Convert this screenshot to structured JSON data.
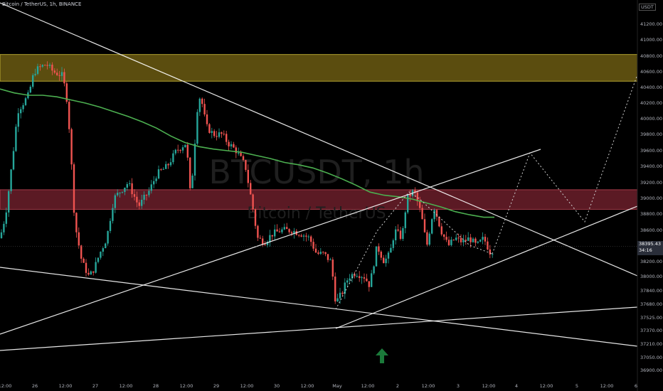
{
  "header": {
    "symbol_line": "Bitcoin / TetherUS, 1h, BINANCE",
    "currency": "USDT"
  },
  "watermark": {
    "ticker": "BTCUSDT, 1h",
    "name": "Bitcoin / TetherUS"
  },
  "current_price": {
    "value": "38395.43",
    "countdown": "34:16"
  },
  "colors": {
    "up": "#26a69a",
    "down": "#ef5350",
    "ma": "#4caf50",
    "supply_zone": "#6b5a12",
    "resistance_zone": "#6b1f2a",
    "trendline": "#ffffff",
    "arrow": "#1b7a3a"
  },
  "chart_data": {
    "type": "candlestick",
    "y_axis": {
      "ticks": [
        36900,
        37050,
        37210,
        37370,
        37525,
        37680,
        37840,
        38000,
        38200,
        38400,
        38600,
        38800,
        39000,
        39200,
        39400,
        39600,
        39800,
        40000,
        40200,
        40400,
        40600,
        40800,
        41000,
        41200
      ],
      "tick_labels": [
        "36900.00",
        "37050.00",
        "37210.00",
        "37370.00",
        "37525.00",
        "37680.00",
        "37840.00",
        "38000.00",
        "38200.00",
        "38400.00",
        "38600.00",
        "38800.00",
        "39000.00",
        "39200.00",
        "39400.00",
        "39600.00",
        "39800.00",
        "40000.00",
        "40200.00",
        "40400.00",
        "40600.00",
        "40800.00",
        "41000.00",
        "41200.00"
      ],
      "range": [
        36850,
        41250
      ]
    },
    "x_axis": {
      "labels": [
        "12:00",
        "26",
        "12:00",
        "27",
        "12:00",
        "28",
        "12:00",
        "29",
        "12:00",
        "30",
        "12:00",
        "May",
        "12:00",
        "2",
        "12:00",
        "3",
        "12:00",
        "4",
        "12:00",
        "5",
        "12:00",
        "6"
      ]
    },
    "zones": [
      {
        "name": "supply",
        "low": 40480,
        "high": 40820
      },
      {
        "name": "resistance",
        "low": 38860,
        "high": 39110
      }
    ],
    "ma_series": [
      [
        0,
        40380
      ],
      [
        20,
        40330
      ],
      [
        40,
        40300
      ],
      [
        60,
        40300
      ],
      [
        80,
        40280
      ],
      [
        100,
        40240
      ],
      [
        120,
        40200
      ],
      [
        140,
        40150
      ],
      [
        160,
        40090
      ],
      [
        180,
        40030
      ],
      [
        200,
        39960
      ],
      [
        220,
        39880
      ],
      [
        240,
        39780
      ],
      [
        260,
        39700
      ],
      [
        280,
        39650
      ],
      [
        300,
        39620
      ],
      [
        320,
        39600
      ],
      [
        340,
        39580
      ],
      [
        360,
        39540
      ],
      [
        380,
        39500
      ],
      [
        400,
        39450
      ],
      [
        420,
        39420
      ],
      [
        440,
        39380
      ],
      [
        460,
        39320
      ],
      [
        480,
        39250
      ],
      [
        500,
        39170
      ],
      [
        520,
        39080
      ],
      [
        540,
        39040
      ],
      [
        560,
        39020
      ],
      [
        580,
        38990
      ],
      [
        600,
        38940
      ],
      [
        620,
        38890
      ],
      [
        640,
        38830
      ],
      [
        660,
        38790
      ],
      [
        680,
        38760
      ],
      [
        695,
        38760
      ]
    ],
    "candle_keyframes": [
      [
        0,
        38500
      ],
      [
        8,
        38800
      ],
      [
        15,
        39300
      ],
      [
        25,
        40100
      ],
      [
        40,
        40300
      ],
      [
        48,
        40600
      ],
      [
        55,
        40650
      ],
      [
        65,
        40700
      ],
      [
        75,
        40600
      ],
      [
        88,
        40550
      ],
      [
        95,
        40200
      ],
      [
        100,
        39500
      ],
      [
        105,
        38700
      ],
      [
        115,
        38200
      ],
      [
        125,
        38000
      ],
      [
        132,
        38100
      ],
      [
        140,
        38300
      ],
      [
        150,
        38500
      ],
      [
        160,
        39000
      ],
      [
        170,
        39100
      ],
      [
        180,
        39200
      ],
      [
        195,
        38900
      ],
      [
        210,
        39100
      ],
      [
        220,
        39300
      ],
      [
        235,
        39400
      ],
      [
        248,
        39600
      ],
      [
        262,
        39700
      ],
      [
        268,
        39000
      ],
      [
        278,
        40200
      ],
      [
        282,
        40300
      ],
      [
        290,
        39900
      ],
      [
        300,
        39800
      ],
      [
        312,
        39800
      ],
      [
        320,
        39700
      ],
      [
        332,
        39600
      ],
      [
        345,
        39400
      ],
      [
        355,
        38900
      ],
      [
        362,
        38500
      ],
      [
        372,
        38450
      ],
      [
        382,
        38550
      ],
      [
        395,
        38600
      ],
      [
        410,
        38600
      ],
      [
        425,
        38550
      ],
      [
        435,
        38500
      ],
      [
        445,
        38300
      ],
      [
        455,
        38300
      ],
      [
        465,
        38200
      ],
      [
        472,
        37700
      ],
      [
        480,
        37800
      ],
      [
        490,
        38000
      ],
      [
        500,
        38050
      ],
      [
        512,
        38000
      ],
      [
        520,
        37900
      ],
      [
        530,
        38400
      ],
      [
        540,
        38200
      ],
      [
        548,
        38300
      ],
      [
        555,
        38600
      ],
      [
        565,
        38500
      ],
      [
        572,
        39000
      ],
      [
        582,
        39100
      ],
      [
        592,
        38800
      ],
      [
        600,
        38400
      ],
      [
        610,
        38900
      ],
      [
        620,
        38600
      ],
      [
        630,
        38400
      ],
      [
        640,
        38500
      ],
      [
        650,
        38450
      ],
      [
        660,
        38500
      ],
      [
        670,
        38400
      ],
      [
        680,
        38500
      ],
      [
        690,
        38300
      ],
      [
        695,
        38395
      ]
    ],
    "trendlines": [
      [
        [
          0,
          4
        ],
        [
          896,
          388
        ]
      ],
      [
        [
          0,
          470
        ],
        [
          760,
          210
        ]
      ],
      [
        [
          472,
          462
        ],
        [
          896,
          290
        ]
      ],
      [
        [
          0,
          376
        ],
        [
          896,
          487
        ]
      ],
      [
        [
          0,
          493
        ],
        [
          896,
          432
        ]
      ]
    ],
    "projection_path": [
      [
        692,
        357
      ],
      [
        745,
        215
      ],
      [
        822,
        312
      ],
      [
        896,
        105
      ]
    ],
    "micro_path": [
      [
        472,
        435
      ],
      [
        530,
        325
      ],
      [
        575,
        270
      ],
      [
        590,
        280
      ],
      [
        660,
        345
      ],
      [
        692,
        357
      ]
    ]
  }
}
